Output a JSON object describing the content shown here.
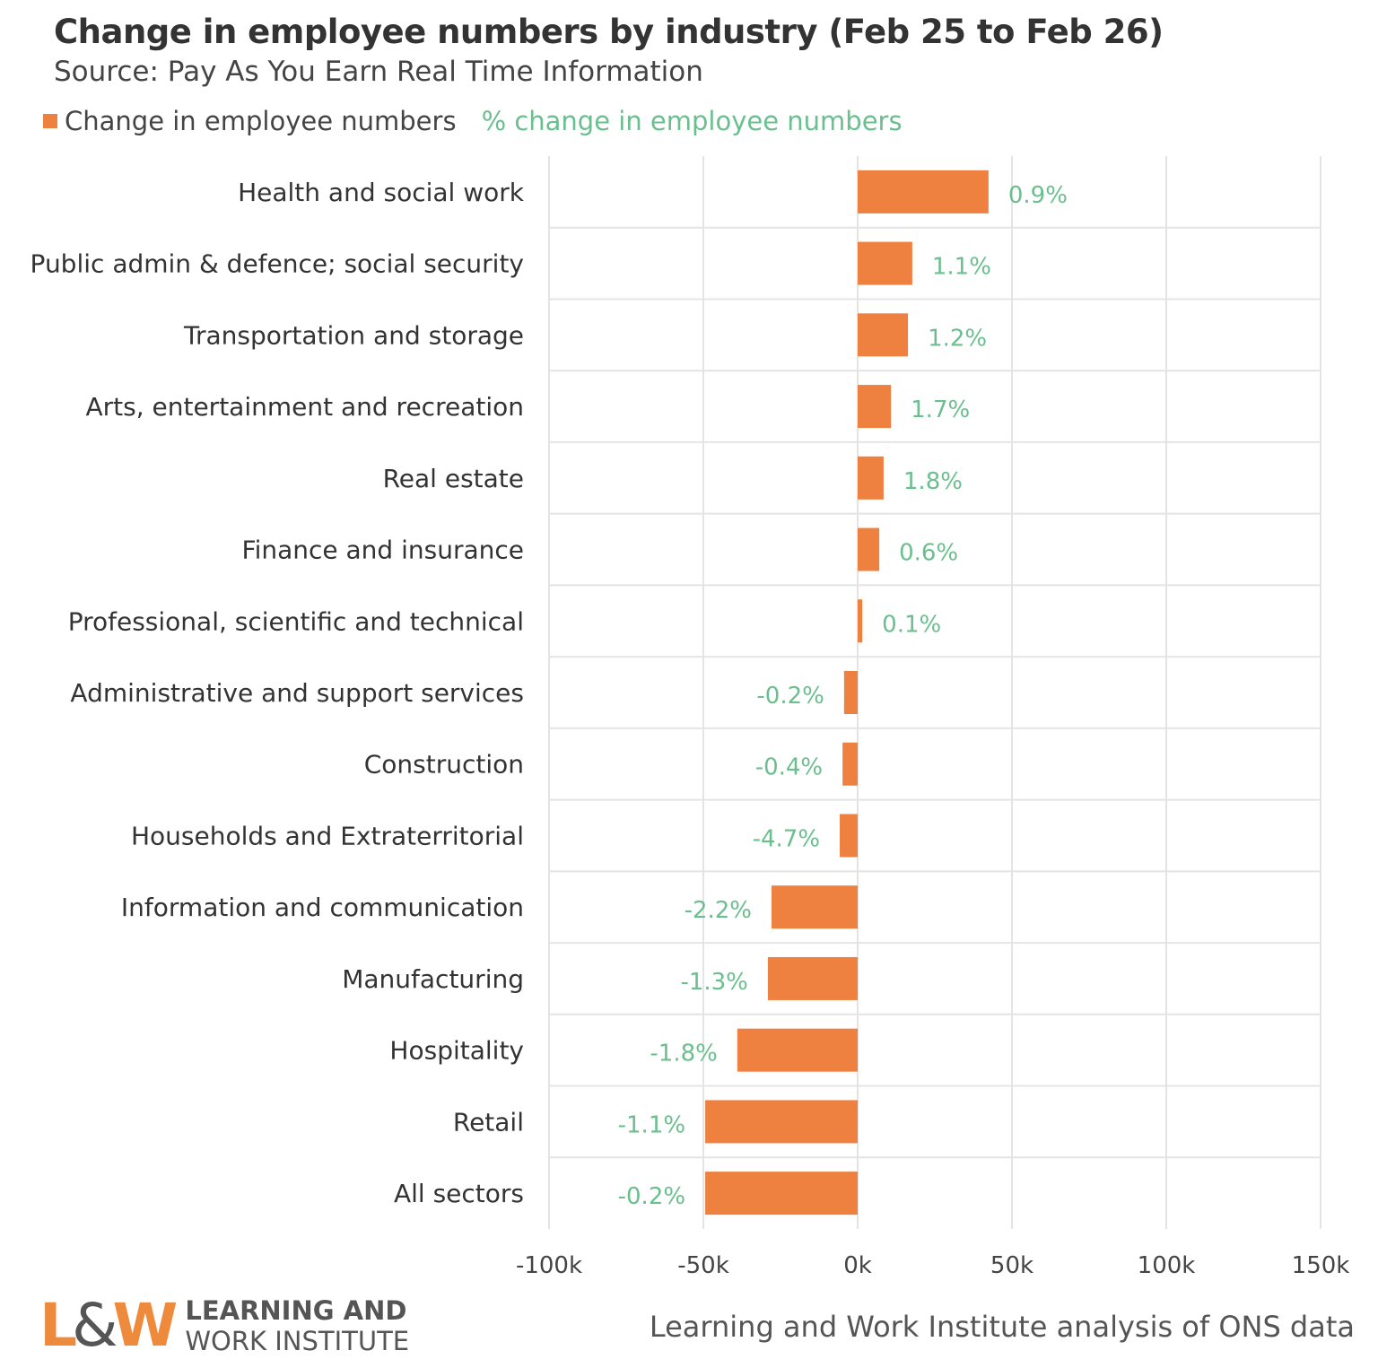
{
  "chart_data": {
    "type": "bar",
    "orientation": "horizontal",
    "title": "Change in employee numbers by industry (Feb 25 to Feb 26)",
    "subtitle": "Source: Pay As You Earn Real Time Information",
    "legend": [
      "Change in employee numbers",
      "% change in employee numbers"
    ],
    "legend_placement": "top-left",
    "categories": [
      "Health and social work",
      "Public admin & defence; social security",
      "Transportation and storage",
      "Arts, entertainment and recreation",
      "Real estate",
      "Finance and insurance",
      "Professional, scientific and technical",
      "Administrative and support services",
      "Construction",
      "Households and Extraterritorial",
      "Information and communication",
      "Manufacturing",
      "Hospitality",
      "Retail",
      "All sectors"
    ],
    "values": [
      42400,
      17700,
      16300,
      10800,
      8400,
      7000,
      1500,
      -4400,
      -4900,
      -5800,
      -27900,
      -29100,
      -39000,
      -49400,
      -49400
    ],
    "pct_labels": [
      "0.9%",
      "1.1%",
      "1.2%",
      "1.7%",
      "1.8%",
      "0.6%",
      "0.1%",
      "-0.2%",
      "-0.4%",
      "-4.7%",
      "-2.2%",
      "-1.3%",
      "-1.8%",
      "-1.1%",
      "-0.2%"
    ],
    "xlim": [
      -100000,
      150000
    ],
    "x_ticks": [
      -100000,
      -50000,
      0,
      50000,
      100000,
      150000
    ],
    "x_tick_labels": [
      "-100k",
      "-50k",
      "0k",
      "50k",
      "100k",
      "150k"
    ],
    "grid": true,
    "colors": {
      "bar": "#ee8040",
      "pct_label": "#6bbf8e",
      "grid": "#e4e4e4"
    }
  },
  "caption": "Learning and Work Institute analysis of ONS data",
  "logo": {
    "mark": "L&W",
    "line1": "LEARNING AND",
    "line2": "WORK INSTITUTE"
  }
}
